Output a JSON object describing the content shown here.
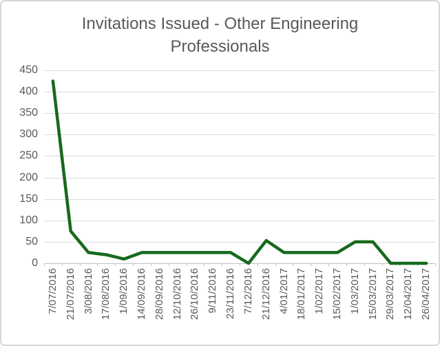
{
  "chart_data": {
    "type": "line",
    "title": "Invitations Issued - Other Engineering Professionals",
    "categories": [
      "7/07/2016",
      "21/07/2016",
      "3/08/2016",
      "17/08/2016",
      "1/09/2016",
      "14/09/2016",
      "28/09/2016",
      "12/10/2016",
      "26/10/2016",
      "9/11/2016",
      "23/11/2016",
      "7/12/2016",
      "21/12/2016",
      "4/01/2017",
      "18/01/2017",
      "1/02/2017",
      "15/02/2017",
      "1/03/2017",
      "15/03/2017",
      "29/03/2017",
      "12/04/2017",
      "26/04/2017"
    ],
    "values": [
      425,
      75,
      25,
      20,
      10,
      25,
      25,
      25,
      25,
      25,
      25,
      0,
      53,
      25,
      25,
      25,
      25,
      50,
      50,
      0,
      0,
      0
    ],
    "y_ticks": [
      0,
      50,
      100,
      150,
      200,
      250,
      300,
      350,
      400,
      450
    ],
    "ylim": [
      0,
      450
    ],
    "xlabel": "",
    "ylabel": "",
    "grid": "horizontal",
    "legend": "none",
    "x_label_rotation": -90,
    "colors": {
      "line": "#16691c",
      "gridline": "#d9d9d9",
      "axis_line": "#bfbfbf",
      "labels": "#595959",
      "title": "#595959",
      "background": "#ffffff",
      "frame_border": "#d6d6d6"
    }
  }
}
